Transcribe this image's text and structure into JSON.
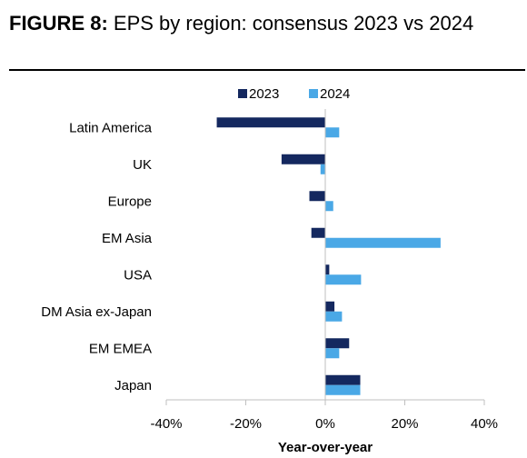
{
  "figure": {
    "label": "FIGURE 8:",
    "title": "EPS by region: consensus 2023 vs 2024"
  },
  "chart_data": {
    "type": "bar",
    "orientation": "horizontal",
    "categories": [
      "Latin America",
      "UK",
      "Europe",
      "EM Asia",
      "USA",
      "DM Asia ex-Japan",
      "EM EMEA",
      "Japan"
    ],
    "series": [
      {
        "name": "2023",
        "color": "#14285f",
        "values": [
          -27.3,
          -11.0,
          -4.0,
          -3.5,
          1.0,
          2.3,
          6.0,
          8.8
        ]
      },
      {
        "name": "2024",
        "color": "#4aa8e6",
        "values": [
          3.5,
          -1.2,
          2.0,
          29.0,
          9.0,
          4.2,
          3.5,
          8.8
        ]
      }
    ],
    "xlabel": "Year-over-year",
    "xlim": [
      -40,
      40
    ],
    "xticks": [
      -40,
      -20,
      0,
      20,
      40
    ],
    "xtick_labels": [
      "-40%",
      "-20%",
      "0%",
      "20%",
      "40%"
    ],
    "legend_position": "top",
    "grid": false
  }
}
